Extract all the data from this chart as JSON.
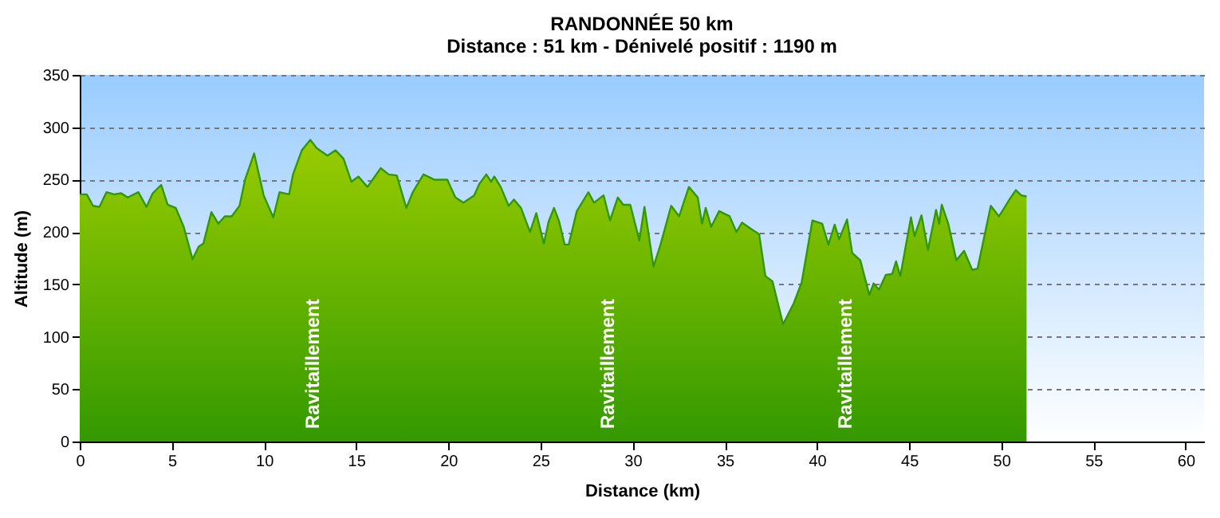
{
  "chart_data": {
    "type": "area",
    "title": "RANDONNÉE 50 km",
    "subtitle": "Distance : 51 km - Dénivelé positif : 1190 m",
    "xlabel": "Distance (km)",
    "ylabel": "Altitude (m)",
    "series": [
      {
        "color": "#339900",
        "x": [
          0,
          0.38,
          0.72,
          1.07,
          1.45,
          1.87,
          2.25,
          2.6,
          3.18,
          3.62,
          3.96,
          4.42,
          4.77,
          5.21,
          5.64,
          6.12,
          6.45,
          6.71,
          7.14,
          7.52,
          7.87,
          8.24,
          8.67,
          8.97,
          9.46,
          9.98,
          10.5,
          10.84,
          11.36,
          11.57,
          12.05,
          12.51,
          12.86,
          13.44,
          13.88,
          14.31,
          14.74,
          15.12,
          15.61,
          16.33,
          16.76,
          17.2,
          17.72,
          18.07,
          18.65,
          19.23,
          19.94,
          20.38,
          20.82,
          21.4,
          21.68,
          22.06,
          22.32,
          22.49,
          22.84,
          23.27,
          23.56,
          23.94,
          24.43,
          24.77,
          25.18,
          25.44,
          25.73,
          26.01,
          26.31,
          26.53,
          26.97,
          27.6,
          27.9,
          28.42,
          28.77,
          29.19,
          29.49,
          29.87,
          30.36,
          30.64,
          31.13,
          31.51,
          32.09,
          32.52,
          33.05,
          33.53,
          33.76,
          33.96,
          34.26,
          34.69,
          35.26,
          35.63,
          35.93,
          36.42,
          36.86,
          37.2,
          37.58,
          38.16,
          38.74,
          39.17,
          39.75,
          40.28,
          40.62,
          40.96,
          41.2,
          41.63,
          41.91,
          42.35,
          42.84,
          43.07,
          43.36,
          43.73,
          44.08,
          44.29,
          44.52,
          45.1,
          45.29,
          45.67,
          46.02,
          46.46,
          46.63,
          46.77,
          47.12,
          47.56,
          47.98,
          48.42,
          48.71,
          49.43,
          49.87,
          50.09,
          50.44,
          50.79,
          51.08,
          51.37
        ],
        "values": [
          236,
          236,
          225,
          224,
          238,
          236,
          237,
          233,
          238,
          224,
          237,
          245,
          226,
          223,
          205,
          174,
          186,
          189,
          219,
          208,
          215,
          215,
          225,
          250,
          275,
          235,
          214,
          238,
          236,
          255,
          278,
          288,
          280,
          273,
          278,
          270,
          248,
          253,
          243,
          261,
          255,
          254,
          223,
          238,
          255,
          250,
          250,
          233,
          228,
          235,
          246,
          255,
          248,
          253,
          243,
          225,
          231,
          223,
          200,
          218,
          189,
          210,
          223,
          210,
          188,
          188,
          220,
          238,
          228,
          235,
          211,
          233,
          226,
          226,
          192,
          224,
          167,
          188,
          225,
          215,
          243,
          233,
          208,
          223,
          205,
          220,
          215,
          200,
          209,
          203,
          198,
          158,
          153,
          112,
          132,
          152,
          211,
          208,
          188,
          207,
          193,
          212,
          180,
          173,
          140,
          151,
          145,
          159,
          160,
          172,
          158,
          214,
          196,
          216,
          183,
          221,
          208,
          226,
          208,
          173,
          182,
          164,
          165,
          225,
          215,
          221,
          231,
          240,
          235,
          234
        ]
      }
    ],
    "annotations": [
      "Ravitaillement",
      "Ravitaillement",
      "Ravitaillement"
    ],
    "xlim": [
      0,
      61
    ],
    "xticks": [
      0,
      5,
      10,
      15,
      20,
      25,
      30,
      35,
      40,
      45,
      50,
      55,
      60
    ],
    "ylim": [
      0,
      350
    ],
    "yticks": [
      0,
      50,
      100,
      150,
      200,
      250,
      300,
      350
    ],
    "grid": "y"
  }
}
